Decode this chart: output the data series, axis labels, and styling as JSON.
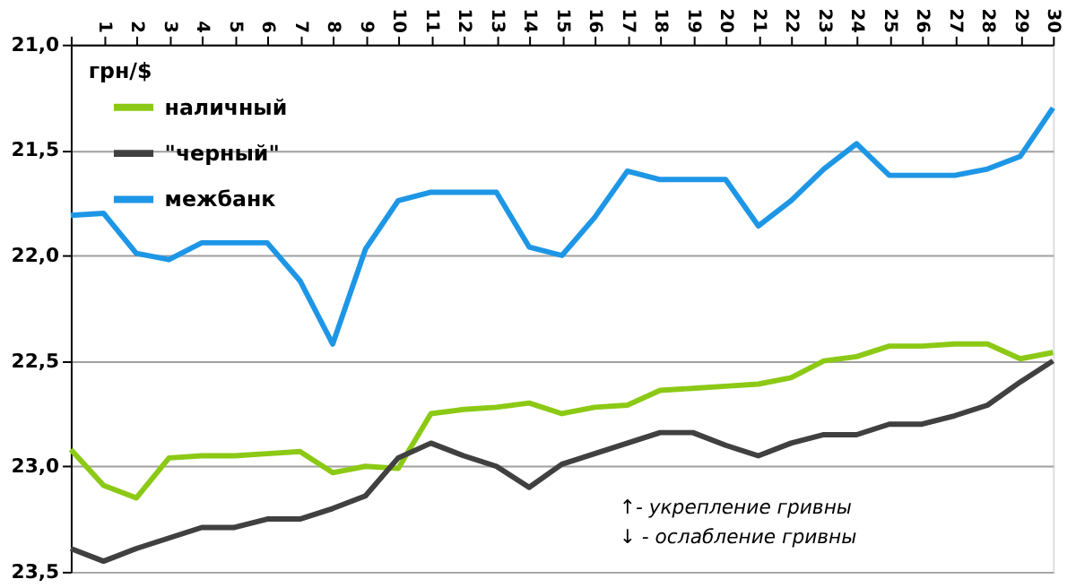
{
  "chart_data": {
    "type": "line",
    "ylabel": "грн/$",
    "categories": [
      null,
      "1",
      "2",
      "3",
      "4",
      "5",
      "6",
      "7",
      "8",
      "9",
      "10",
      "11",
      "12",
      "13",
      "14",
      "15",
      "16",
      "17",
      "18",
      "19",
      "20",
      "21",
      "22",
      "23",
      "24",
      "25",
      "26",
      "27",
      "28",
      "29",
      "30"
    ],
    "series": [
      {
        "name": "наличный",
        "color": "#8cc915",
        "values": [
          22.92,
          23.09,
          23.15,
          22.96,
          22.95,
          22.95,
          22.94,
          22.93,
          23.03,
          23.0,
          23.01,
          22.75,
          22.73,
          22.72,
          22.7,
          22.75,
          22.72,
          22.71,
          22.64,
          22.63,
          22.62,
          22.61,
          22.58,
          22.5,
          22.48,
          22.43,
          22.43,
          22.42,
          22.42,
          22.49,
          22.46
        ]
      },
      {
        "name": "\"черный\"",
        "color": "#404040",
        "values": [
          23.39,
          23.45,
          23.39,
          23.34,
          23.29,
          23.29,
          23.25,
          23.25,
          23.2,
          23.14,
          22.96,
          22.89,
          22.95,
          23.0,
          23.1,
          22.99,
          22.94,
          22.89,
          22.84,
          22.84,
          22.9,
          22.95,
          22.89,
          22.85,
          22.85,
          22.8,
          22.8,
          22.76,
          22.71,
          22.6,
          22.5
        ]
      },
      {
        "name": "межбанк",
        "color": "#1e96e6",
        "values": [
          21.81,
          21.8,
          21.99,
          22.02,
          21.94,
          21.94,
          21.94,
          22.12,
          22.42,
          21.97,
          21.74,
          21.7,
          21.7,
          21.7,
          21.96,
          22.0,
          21.82,
          21.6,
          21.64,
          21.64,
          21.64,
          21.86,
          21.74,
          21.59,
          21.47,
          21.62,
          21.62,
          21.62,
          21.59,
          21.53,
          21.3
        ]
      }
    ],
    "ylim": [
      23.5,
      21.0
    ],
    "yticks": [
      {
        "value": 21.0,
        "label": "21,0"
      },
      {
        "value": 21.5,
        "label": "21,5"
      },
      {
        "value": 22.0,
        "label": "22,0"
      },
      {
        "value": 22.5,
        "label": "22,5"
      },
      {
        "value": 23.0,
        "label": "23,0"
      },
      {
        "value": 23.5,
        "label": "23,5"
      }
    ],
    "grid": "y",
    "legend": "top left",
    "line_style": "solid",
    "marker": "none",
    "annotations": [
      "↑- укрепление гривны",
      "↓ - ослабление гривны"
    ]
  }
}
